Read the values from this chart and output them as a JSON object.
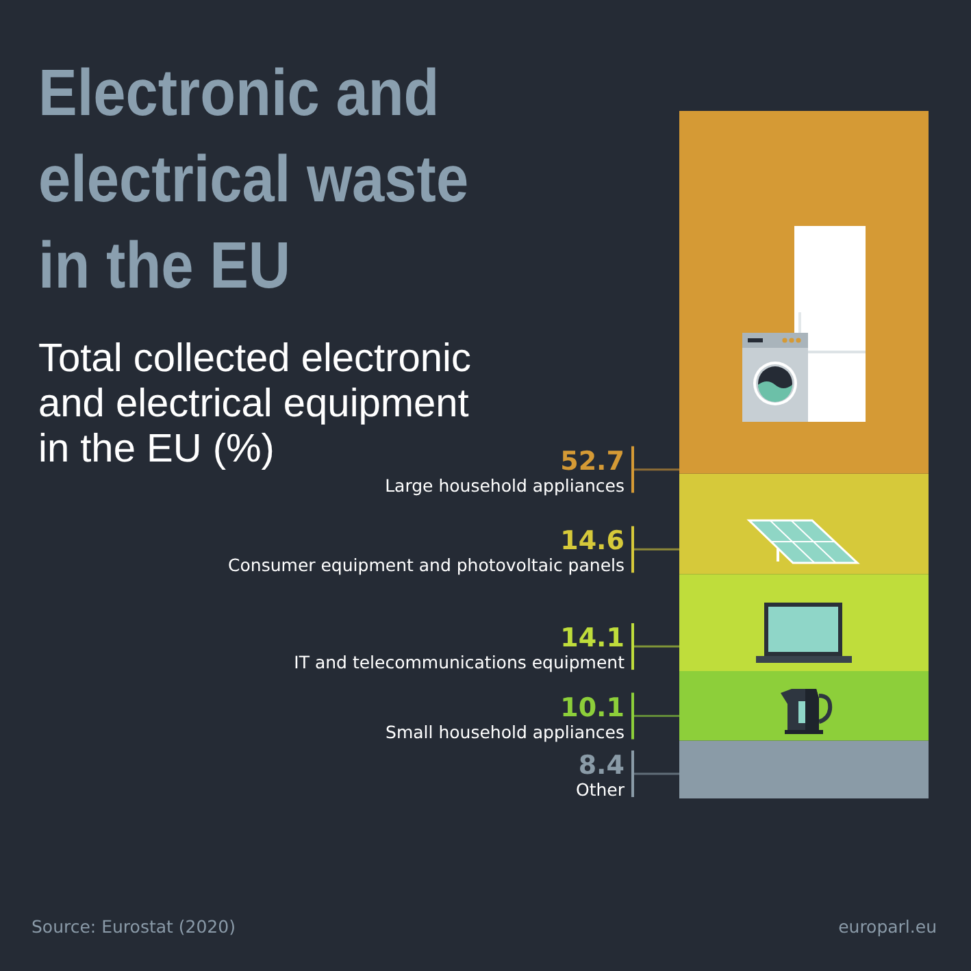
{
  "chart_data": {
    "type": "bar",
    "title": "Electronic and electrical waste in the EU",
    "subtitle": "Total collected electronic and electrical equipment in the EU (%)",
    "categories": [
      null
    ],
    "stacked": true,
    "data_labels": true,
    "series": [
      {
        "name": "Other",
        "color": "#8a9ba7",
        "values": [
          8.4
        ]
      },
      {
        "name": "Small household appliances",
        "color": "#8dcf3a",
        "values": [
          10.1
        ]
      },
      {
        "name": "IT and telecommunications equipment",
        "color": "#bfdd3b",
        "values": [
          14.1
        ]
      },
      {
        "name": "Consumer equipment and photovoltaic panels",
        "color": "#d6c93a",
        "values": [
          14.6
        ]
      },
      {
        "name": "Large household appliances",
        "color": "#d59a35",
        "values": [
          52.7
        ]
      }
    ],
    "annotations": [
      "Source: Eurostat (2020)",
      "europarl.eu"
    ]
  }
}
